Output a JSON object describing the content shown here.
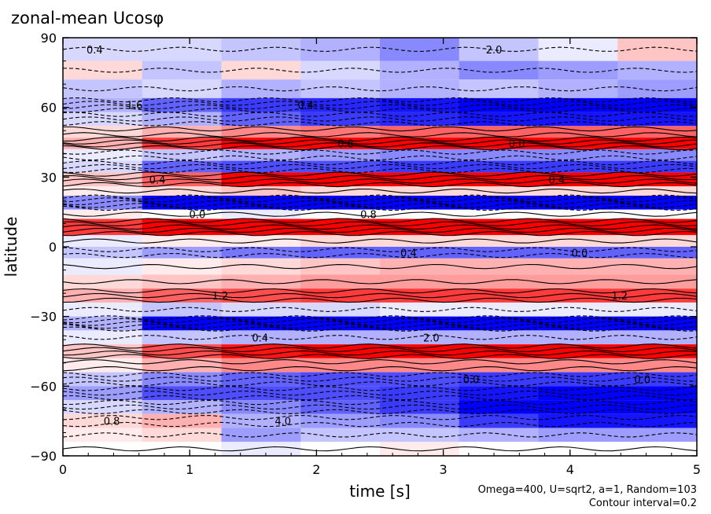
{
  "chart_data": {
    "type": "heatmap",
    "title": "zonal-mean Ucosφ",
    "xlabel": "time [s]",
    "ylabel": "latitude",
    "x_ticks": [
      "0",
      "1",
      "2",
      "3",
      "4",
      "5"
    ],
    "y_ticks": [
      "90",
      "60",
      "30",
      "0",
      "−30",
      "−60",
      "−90"
    ],
    "xlim": [
      0,
      5
    ],
    "ylim": [
      -90,
      90
    ],
    "annotations": [
      "Omega=400, U=sqrt2, a=1, Random=103",
      "Contour interval=0.2"
    ],
    "contour_labels": [
      "0.4",
      "0.4",
      "0.0",
      "0.4",
      "0.8",
      "0.0",
      "1.2",
      "2.0",
      "0.0",
      "4.0",
      "2.0",
      "1.6",
      "0.8",
      "0.4",
      "0.0",
      "0.4",
      "1.2",
      "0.4",
      "0.0",
      "0.8"
    ],
    "colors": {
      "positive": "#ff0000",
      "negative": "#0000ff",
      "zero": "#ffffff",
      "line": "#000000"
    },
    "contour_interval": 0.2,
    "latitude_bands": [
      {
        "lat_min": 80,
        "lat_max": 90,
        "values": [
          -0.4,
          -0.4,
          -0.6,
          -0.8,
          -1.2,
          -0.6,
          -0.2,
          0.6
        ]
      },
      {
        "lat_min": 72,
        "lat_max": 80,
        "values": [
          0.4,
          -0.6,
          0.4,
          -0.4,
          -0.8,
          -1.2,
          -1.0,
          -0.8
        ]
      },
      {
        "lat_min": 64,
        "lat_max": 72,
        "values": [
          -0.6,
          -0.4,
          -0.8,
          -0.6,
          -0.8,
          -0.6,
          -0.8,
          -1.0
        ]
      },
      {
        "lat_min": 58,
        "lat_max": 64,
        "values": [
          -0.8,
          -1.6,
          -2.0,
          -2.2,
          -2.4,
          -2.6,
          -2.6,
          -2.6
        ]
      },
      {
        "lat_min": 52,
        "lat_max": 58,
        "values": [
          -0.4,
          -0.8,
          -1.6,
          -2.0,
          -2.2,
          -2.4,
          -2.4,
          -2.4
        ]
      },
      {
        "lat_min": 47,
        "lat_max": 52,
        "values": [
          0.4,
          0.8,
          1.2,
          1.4,
          1.6,
          1.6,
          1.6,
          1.6
        ]
      },
      {
        "lat_min": 42,
        "lat_max": 47,
        "values": [
          0.8,
          2.0,
          2.6,
          3.0,
          3.0,
          3.0,
          3.0,
          3.0
        ]
      },
      {
        "lat_min": 37,
        "lat_max": 42,
        "values": [
          -0.2,
          -0.6,
          -0.8,
          -1.0,
          -1.2,
          -1.2,
          -1.2,
          -1.2
        ]
      },
      {
        "lat_min": 32,
        "lat_max": 37,
        "values": [
          -0.4,
          -1.6,
          -1.8,
          -1.8,
          -2.0,
          -2.0,
          -2.0,
          -2.0
        ]
      },
      {
        "lat_min": 26,
        "lat_max": 32,
        "values": [
          0.6,
          1.6,
          2.6,
          3.2,
          3.0,
          3.0,
          3.0,
          3.0
        ]
      },
      {
        "lat_min": 22,
        "lat_max": 26,
        "values": [
          0.2,
          0.4,
          0.6,
          0.4,
          0.4,
          0.4,
          0.4,
          0.4
        ]
      },
      {
        "lat_min": 16,
        "lat_max": 22,
        "values": [
          -1.2,
          -2.6,
          -3.0,
          -3.2,
          -3.2,
          -3.2,
          -3.2,
          -3.2
        ]
      },
      {
        "lat_min": 12,
        "lat_max": 16,
        "values": [
          0.2,
          0.0,
          -0.2,
          0.0,
          0.0,
          0.0,
          0.0,
          0.0
        ]
      },
      {
        "lat_min": 5,
        "lat_max": 12,
        "values": [
          2.0,
          3.2,
          3.4,
          3.2,
          3.2,
          3.4,
          3.4,
          3.4
        ]
      },
      {
        "lat_min": 0,
        "lat_max": 5,
        "values": [
          -0.2,
          0.2,
          0.2,
          0.4,
          0.4,
          0.4,
          0.4,
          0.4
        ]
      },
      {
        "lat_min": -5,
        "lat_max": 0,
        "values": [
          -0.6,
          -1.0,
          -1.4,
          -1.6,
          -1.6,
          -1.6,
          -1.6,
          -1.6
        ]
      },
      {
        "lat_min": -12,
        "lat_max": -5,
        "values": [
          -0.2,
          0.2,
          0.4,
          0.6,
          0.8,
          0.8,
          0.8,
          0.8
        ]
      },
      {
        "lat_min": -18,
        "lat_max": -12,
        "values": [
          0.4,
          0.6,
          0.8,
          1.0,
          1.0,
          1.0,
          1.0,
          1.0
        ]
      },
      {
        "lat_min": -24,
        "lat_max": -18,
        "values": [
          0.8,
          1.6,
          1.8,
          2.0,
          2.0,
          2.0,
          2.0,
          2.0
        ]
      },
      {
        "lat_min": -30,
        "lat_max": -24,
        "values": [
          -0.2,
          -0.6,
          -0.4,
          -0.4,
          -0.2,
          -0.2,
          -0.2,
          -0.2
        ]
      },
      {
        "lat_min": -36,
        "lat_max": -30,
        "values": [
          -0.8,
          -2.6,
          -3.0,
          -3.2,
          -3.2,
          -3.2,
          -3.2,
          -3.2
        ]
      },
      {
        "lat_min": -42,
        "lat_max": -36,
        "values": [
          -0.2,
          -0.6,
          -0.8,
          -0.8,
          -0.8,
          -0.8,
          -0.8,
          -0.8
        ]
      },
      {
        "lat_min": -48,
        "lat_max": -42,
        "values": [
          0.6,
          1.8,
          2.4,
          2.8,
          2.8,
          2.8,
          2.8,
          2.8
        ]
      },
      {
        "lat_min": -54,
        "lat_max": -48,
        "values": [
          0.2,
          0.8,
          1.2,
          1.2,
          1.2,
          1.2,
          1.2,
          1.2
        ]
      },
      {
        "lat_min": -60,
        "lat_max": -54,
        "values": [
          -0.6,
          -1.2,
          -1.6,
          -1.8,
          -1.8,
          -2.0,
          -2.0,
          -2.0
        ]
      },
      {
        "lat_min": -66,
        "lat_max": -60,
        "values": [
          -1.0,
          -1.8,
          -1.8,
          -1.8,
          -2.0,
          -2.4,
          -2.6,
          -2.6
        ]
      },
      {
        "lat_min": -72,
        "lat_max": -66,
        "values": [
          -0.4,
          -0.8,
          -1.2,
          -1.6,
          -2.0,
          -2.6,
          -2.8,
          -2.8
        ]
      },
      {
        "lat_min": -78,
        "lat_max": -72,
        "values": [
          0.4,
          0.8,
          -0.8,
          -1.0,
          -1.2,
          -2.0,
          -2.4,
          -2.4
        ]
      },
      {
        "lat_min": -84,
        "lat_max": -78,
        "values": [
          0.2,
          0.4,
          -1.0,
          -0.6,
          -0.6,
          -0.8,
          -1.0,
          -1.0
        ]
      },
      {
        "lat_min": -90,
        "lat_max": -84,
        "values": [
          0.0,
          0.0,
          -0.2,
          0.0,
          0.2,
          0.0,
          0.0,
          0.0
        ]
      }
    ]
  }
}
